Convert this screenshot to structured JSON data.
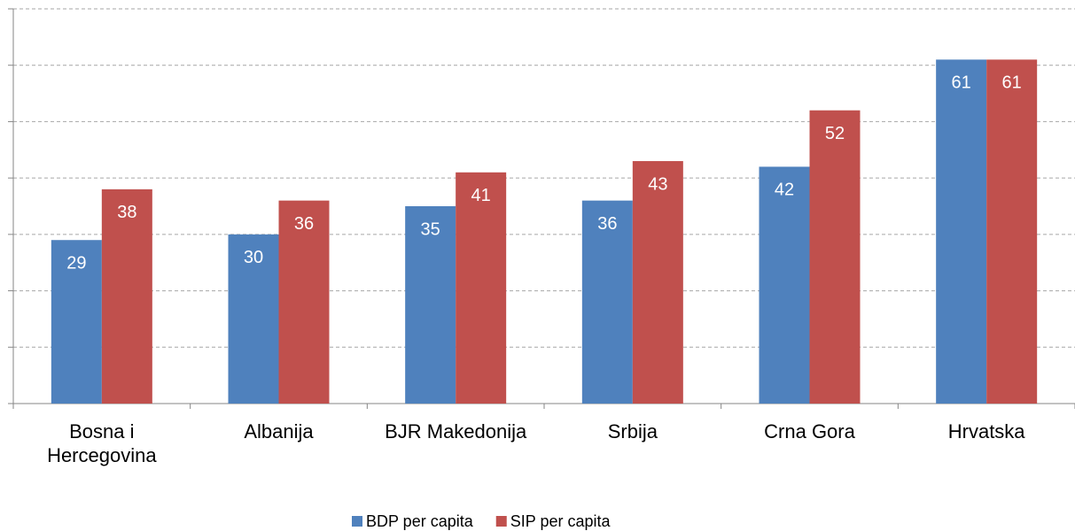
{
  "chart_data": {
    "type": "bar",
    "categories": [
      "Bosna i Hercegovina",
      "Albanija",
      "BJR Makedonija",
      "Srbija",
      "Crna Gora",
      "Hrvatska"
    ],
    "series": [
      {
        "name": "BDP per capita",
        "color": "#4f81bd",
        "values": [
          29,
          30,
          35,
          36,
          42,
          61
        ]
      },
      {
        "name": "SIP per capita",
        "color": "#c0504d",
        "values": [
          38,
          36,
          41,
          43,
          52,
          61
        ]
      }
    ],
    "ylim": [
      0,
      70
    ],
    "yticks": [
      0,
      10,
      20,
      30,
      40,
      50,
      60,
      70
    ],
    "grid": true,
    "legend": "bottom"
  }
}
